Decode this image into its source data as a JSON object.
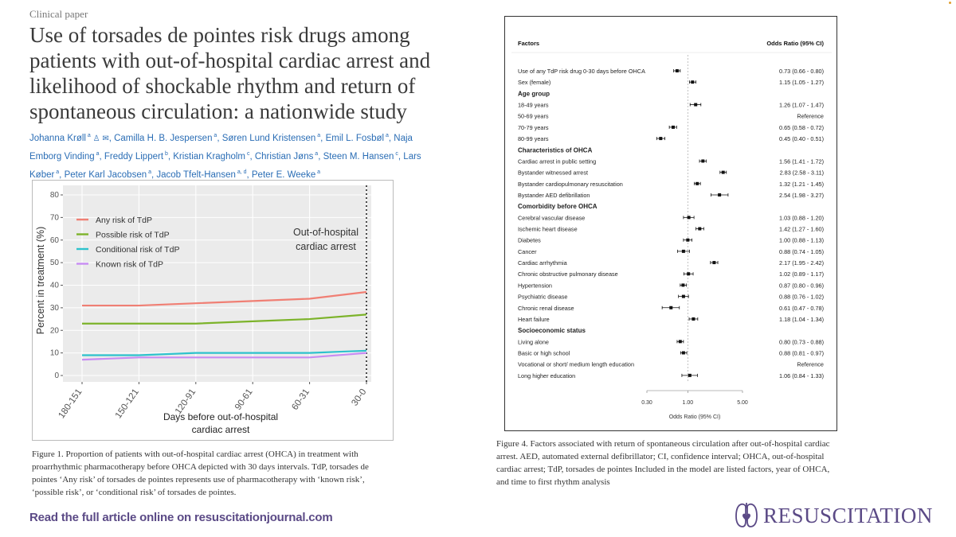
{
  "header": {
    "label": "Clinical paper",
    "title": "Use of torsades de pointes risk drugs among patients with out-of-hospital cardiac arrest and likelihood of shockable rhythm and return of spontaneous circulation: a nationwide study"
  },
  "authors": [
    {
      "name": "Johanna Krøll",
      "aff": "a"
    },
    {
      "name": "Camilla H. B. Jespersen",
      "aff": "a"
    },
    {
      "name": "Søren Lund Kristensen",
      "aff": "a"
    },
    {
      "name": "Emil L. Fosbøl",
      "aff": "a"
    },
    {
      "name": "Naja Emborg Vinding",
      "aff": "a"
    },
    {
      "name": "Freddy Lippert",
      "aff": "b"
    },
    {
      "name": "Kristian Kragholm",
      "aff": "c"
    },
    {
      "name": "Christian Jøns",
      "aff": "a"
    },
    {
      "name": "Steen M. Hansen",
      "aff": "c"
    },
    {
      "name": "Lars Køber",
      "aff": "a"
    },
    {
      "name": "Peter Karl Jacobsen",
      "aff": "a"
    },
    {
      "name": "Jacob Tfelt-Hansen",
      "aff": "a, d"
    },
    {
      "name": "Peter E. Weeke",
      "aff": "a"
    }
  ],
  "figure1": {
    "caption": "Figure 1. Proportion of patients with out-of-hospital cardiac arrest (OHCA) in treatment with proarrhythmic pharmacotherapy before OHCA depicted with 30 days intervals. TdP, torsades de pointes ‘Any risk’ of torsades de pointes represents use of pharmacotherapy with ‘known risk’, ‘possible risk’, or ‘conditional risk’ of torsades de pointes.",
    "annotation_line1": "Out-of-hospital",
    "annotation_line2": "cardiac arrest"
  },
  "figure4": {
    "caption": "Figure 4. Factors associated with return of spontaneous circulation after out-of-hospital cardiac arrest. AED, automated external defibrillator; CI, confidence interval; OHCA, out-of-hospital cardiac arrest; TdP, torsades de pointes Included in the model are listed factors, year of OHCA, and time to first rhythm analysis",
    "header_left": "Factors",
    "header_right": "Odds Ratio (95% CI)"
  },
  "footer": {
    "read_more": "Read the full article online on resuscitationjournal.com",
    "brand": "RESUSCITATION"
  },
  "colors": {
    "accent": "#5b4a86",
    "link": "#2a6db5",
    "any": "#f07f74",
    "possible": "#7cb32a",
    "conditional": "#2ec2cc",
    "known": "#c78cf2"
  },
  "chart_data": [
    {
      "type": "line",
      "title": "",
      "xlabel": "Days before out-of-hospital cardiac arrest",
      "ylabel": "Percent in treatment (%)",
      "categories": [
        "180-151",
        "150-121",
        "120-91",
        "90-61",
        "60-31",
        "30-0"
      ],
      "ylim": [
        0,
        80
      ],
      "yticks": [
        0,
        10,
        20,
        30,
        40,
        50,
        60,
        70,
        80
      ],
      "legend_position": "top-left",
      "series": [
        {
          "name": "Any risk of TdP",
          "color": "#f07f74",
          "values": [
            31,
            31,
            32,
            33,
            34,
            37
          ]
        },
        {
          "name": "Possible risk of TdP",
          "color": "#7cb32a",
          "values": [
            23,
            23,
            23,
            24,
            25,
            27
          ]
        },
        {
          "name": "Conditional risk of TdP",
          "color": "#2ec2cc",
          "values": [
            9,
            9,
            10,
            10,
            10,
            11
          ]
        },
        {
          "name": "Known risk of TdP",
          "color": "#c78cf2",
          "values": [
            7,
            8,
            8,
            8,
            8,
            10
          ]
        }
      ],
      "reference_line": {
        "at": "30-0",
        "label": "Out-of-hospital cardiac arrest"
      }
    },
    {
      "type": "forest",
      "title": "",
      "xlabel": "Odds Ratio (95% CI)",
      "xscale": "log",
      "xlim": [
        0.3,
        5.0
      ],
      "xticks": [
        0.3,
        1.0,
        5.0
      ],
      "xtick_labels": [
        "0.30",
        "1.00",
        "5.00"
      ],
      "reference": 1.0,
      "rows": [
        {
          "label": "Use of any TdP risk drug 0-30 days before OHCA",
          "or": 0.73,
          "lo": 0.66,
          "hi": 0.8,
          "text": "0.73 (0.66 - 0.80)"
        },
        {
          "label": "Sex (female)",
          "or": 1.15,
          "lo": 1.05,
          "hi": 1.27,
          "text": "1.15 (1.05 - 1.27)"
        },
        {
          "label": "Age group",
          "header": true
        },
        {
          "label": "18-49 years",
          "or": 1.26,
          "lo": 1.07,
          "hi": 1.47,
          "text": "1.26 (1.07 - 1.47)"
        },
        {
          "label": "50-69 years",
          "text": "Reference"
        },
        {
          "label": "70-79 years",
          "or": 0.65,
          "lo": 0.58,
          "hi": 0.72,
          "text": "0.65 (0.58 - 0.72)"
        },
        {
          "label": "80-99 years",
          "or": 0.45,
          "lo": 0.4,
          "hi": 0.51,
          "text": "0.45 (0.40 - 0.51)"
        },
        {
          "label": "Characteristics of OHCA",
          "header": true
        },
        {
          "label": "Cardiac arrest in public setting",
          "or": 1.56,
          "lo": 1.41,
          "hi": 1.72,
          "text": "1.56 (1.41 - 1.72)"
        },
        {
          "label": "Bystander witnessed arrest",
          "or": 2.83,
          "lo": 2.58,
          "hi": 3.11,
          "text": "2.83 (2.58 - 3.11)"
        },
        {
          "label": "Bystander cardiopulmonary resuscitation",
          "or": 1.32,
          "lo": 1.21,
          "hi": 1.45,
          "text": "1.32 (1.21 - 1.45)"
        },
        {
          "label": "Bystander AED defibrillation",
          "or": 2.54,
          "lo": 1.98,
          "hi": 3.27,
          "text": "2.54 (1.98 - 3.27)"
        },
        {
          "label": "Comorbidity before OHCA",
          "header": true
        },
        {
          "label": "Cerebral vascular disease",
          "or": 1.03,
          "lo": 0.88,
          "hi": 1.2,
          "text": "1.03 (0.88 - 1.20)"
        },
        {
          "label": "Ischemic heart disease",
          "or": 1.42,
          "lo": 1.27,
          "hi": 1.6,
          "text": "1.42 (1.27 - 1.60)"
        },
        {
          "label": "Diabetes",
          "or": 1.0,
          "lo": 0.88,
          "hi": 1.13,
          "text": "1.00 (0.88 - 1.13)"
        },
        {
          "label": "Cancer",
          "or": 0.88,
          "lo": 0.74,
          "hi": 1.05,
          "text": "0.88 (0.74 - 1.05)"
        },
        {
          "label": "Cardiac arrhythmia",
          "or": 2.17,
          "lo": 1.95,
          "hi": 2.42,
          "text": "2.17 (1.95 - 2.42)"
        },
        {
          "label": "Chronic obstructive pulmonary disease",
          "or": 1.02,
          "lo": 0.89,
          "hi": 1.17,
          "text": "1.02 (0.89 - 1.17)"
        },
        {
          "label": "Hypertension",
          "or": 0.87,
          "lo": 0.8,
          "hi": 0.96,
          "text": "0.87 (0.80 - 0.96)"
        },
        {
          "label": "Psychiatric disease",
          "or": 0.88,
          "lo": 0.76,
          "hi": 1.02,
          "text": "0.88 (0.76 - 1.02)"
        },
        {
          "label": "Chronic renal disease",
          "or": 0.61,
          "lo": 0.47,
          "hi": 0.78,
          "text": "0.61 (0.47 - 0.78)"
        },
        {
          "label": "Heart failure",
          "or": 1.18,
          "lo": 1.04,
          "hi": 1.34,
          "text": "1.18 (1.04 - 1.34)"
        },
        {
          "label": "Socioeconomic status",
          "header": true
        },
        {
          "label": "Living alone",
          "or": 0.8,
          "lo": 0.73,
          "hi": 0.88,
          "text": "0.80 (0.73 - 0.88)"
        },
        {
          "label": "Basic or high school",
          "or": 0.88,
          "lo": 0.81,
          "hi": 0.97,
          "text": "0.88 (0.81 - 0.97)"
        },
        {
          "label": "Vocational or short/ medium length education",
          "text": "Reference"
        },
        {
          "label": "Long higher education",
          "or": 1.06,
          "lo": 0.84,
          "hi": 1.33,
          "text": "1.06 (0.84 - 1.33)"
        }
      ]
    }
  ]
}
